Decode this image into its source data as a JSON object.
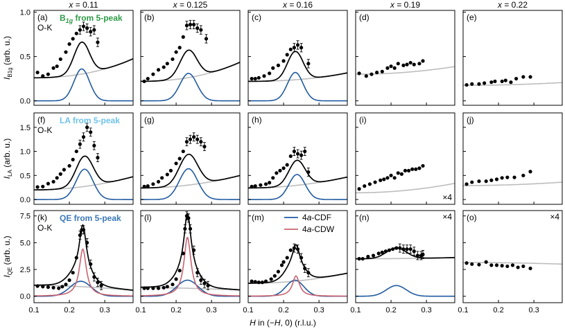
{
  "chart_data": {
    "type": "multi-panel scatter with fitted curves",
    "x_axis": {
      "label": "H in (−H, 0) (r.l.u.)",
      "range": [
        0.1,
        0.38
      ],
      "ticks": [
        0.1,
        0.2,
        0.3
      ],
      "tick_labels": [
        "0.1",
        "0.2",
        "0.3"
      ]
    },
    "columns": [
      {
        "title": "x = 0.11",
        "doping": "0.11"
      },
      {
        "title": "x = 0.125",
        "doping": "0.125"
      },
      {
        "title": "x = 0.16",
        "doping": "0.16"
      },
      {
        "title": "x = 0.19",
        "doping": "0.19"
      },
      {
        "title": "x = 0.22",
        "doping": "0.22"
      }
    ],
    "rows": [
      {
        "id": "b1g",
        "title": "B1g from 5-peak",
        "title_main": "B",
        "title_sub": "1g",
        "title_rest": " from 5-peak",
        "title_color": "#2e9a47",
        "ylabel_main": "I",
        "ylabel_sub": "B1g",
        "ylabel_unit": " (arb. u.)",
        "ylim": [
          -0.05,
          1.02
        ],
        "yticks": [
          0.0,
          0.5,
          1.0
        ],
        "ytick_labels": [
          "0.0",
          "0.5",
          "1.0"
        ],
        "edge_label": "O-K",
        "panels": [
          {
            "label": "(a)",
            "points": {
              "x": [
                0.11,
                0.125,
                0.14,
                0.155,
                0.165,
                0.175,
                0.19,
                0.2,
                0.21,
                0.22,
                0.23,
                0.24,
                0.25,
                0.26,
                0.27,
                0.28
              ],
              "y": [
                0.32,
                0.28,
                0.3,
                0.37,
                0.39,
                0.47,
                0.55,
                0.64,
                0.7,
                0.76,
                0.8,
                0.84,
                0.82,
                0.78,
                0.8,
                0.66
              ]
            },
            "background": {
              "a": 0.26,
              "b": 1.9,
              "c": 3.0
            },
            "peak": {
              "amp": 0.36,
              "center": 0.235,
              "sigma": 0.022
            }
          },
          {
            "label": "(b)",
            "points": {
              "x": [
                0.11,
                0.12,
                0.135,
                0.15,
                0.165,
                0.175,
                0.19,
                0.2,
                0.21,
                0.22,
                0.23,
                0.24,
                0.25,
                0.26,
                0.27,
                0.285
              ],
              "y": [
                0.22,
                0.25,
                0.3,
                0.35,
                0.38,
                0.42,
                0.47,
                0.55,
                0.6,
                0.72,
                0.85,
                0.86,
                0.86,
                0.82,
                0.8,
                0.7
              ]
            },
            "background": {
              "a": 0.22,
              "b": 1.9,
              "c": 3.0
            },
            "peak": {
              "amp": 0.31,
              "center": 0.235,
              "sigma": 0.024
            }
          },
          {
            "label": "(c)",
            "points": {
              "x": [
                0.11,
                0.12,
                0.13,
                0.145,
                0.16,
                0.17,
                0.185,
                0.2,
                0.21,
                0.22,
                0.23,
                0.24,
                0.25,
                0.27
              ],
              "y": [
                0.25,
                0.25,
                0.26,
                0.28,
                0.31,
                0.37,
                0.4,
                0.45,
                0.52,
                0.58,
                0.6,
                0.63,
                0.6,
                0.42
              ]
            },
            "background": {
              "a": 0.22,
              "b": 0.8,
              "c": 1.5
            },
            "peak": {
              "amp": 0.32,
              "center": 0.233,
              "sigma": 0.022
            }
          },
          {
            "label": "(d)",
            "points": {
              "x": [
                0.11,
                0.13,
                0.145,
                0.16,
                0.175,
                0.19,
                0.2,
                0.21,
                0.22,
                0.235,
                0.245,
                0.255,
                0.265,
                0.28,
                0.29
              ],
              "y": [
                0.31,
                0.28,
                0.3,
                0.32,
                0.33,
                0.37,
                0.39,
                0.37,
                0.42,
                0.4,
                0.41,
                0.43,
                0.41,
                0.42,
                0.45
              ]
            },
            "background": {
              "a": 0.3,
              "b": 1.1,
              "c": 0.0
            }
          },
          {
            "label": "(e)",
            "points": {
              "x": [
                0.11,
                0.125,
                0.145,
                0.16,
                0.18,
                0.19,
                0.21,
                0.22,
                0.235,
                0.25,
                0.27,
                0.29
              ],
              "y": [
                0.18,
                0.19,
                0.19,
                0.2,
                0.21,
                0.22,
                0.22,
                0.23,
                0.21,
                0.25,
                0.27,
                0.27
              ]
            },
            "background": {
              "a": 0.175,
              "b": 0.4,
              "c": 0.0
            }
          }
        ]
      },
      {
        "id": "la",
        "title": "LA from 5-peak",
        "title_main": "LA from 5-peak",
        "title_sub": "",
        "title_rest": "",
        "title_color": "#6ec3e8",
        "ylabel_main": "I",
        "ylabel_sub": "LA",
        "ylabel_unit": " (arb. u.)",
        "ylim": [
          -0.1,
          1.8
        ],
        "yticks": [
          0.0,
          0.5,
          1.0,
          1.5
        ],
        "ytick_labels": [
          "0.0",
          "0.5",
          "1.0",
          "1.5"
        ],
        "edge_label": "O-K",
        "scale_note": "×4",
        "panels": [
          {
            "label": "(f)",
            "points": {
              "x": [
                0.11,
                0.125,
                0.14,
                0.155,
                0.165,
                0.175,
                0.185,
                0.2,
                0.21,
                0.22,
                0.23,
                0.24,
                0.25,
                0.26,
                0.27,
                0.28
              ],
              "y": [
                0.26,
                0.27,
                0.33,
                0.37,
                0.45,
                0.53,
                0.62,
                0.7,
                0.83,
                1.0,
                1.15,
                1.3,
                1.5,
                1.4,
                1.12,
                0.87
              ]
            },
            "background": {
              "a": 0.2,
              "b": 3.5,
              "c": 0.0
            },
            "peak": {
              "amp": 0.63,
              "center": 0.243,
              "sigma": 0.024
            }
          },
          {
            "label": "(g)",
            "points": {
              "x": [
                0.11,
                0.12,
                0.135,
                0.15,
                0.16,
                0.175,
                0.185,
                0.2,
                0.21,
                0.22,
                0.23,
                0.24,
                0.25,
                0.26,
                0.27,
                0.28
              ],
              "y": [
                0.27,
                0.28,
                0.32,
                0.37,
                0.45,
                0.52,
                0.6,
                0.75,
                0.85,
                1.0,
                1.2,
                1.25,
                1.3,
                1.25,
                1.2,
                1.1
              ]
            },
            "background": {
              "a": 0.24,
              "b": 3.3,
              "c": 0.0
            },
            "peak": {
              "amp": 0.64,
              "center": 0.235,
              "sigma": 0.026
            }
          },
          {
            "label": "(h)",
            "points": {
              "x": [
                0.11,
                0.12,
                0.135,
                0.15,
                0.16,
                0.17,
                0.18,
                0.19,
                0.2,
                0.21,
                0.22,
                0.23,
                0.24,
                0.25,
                0.26,
                0.27
              ],
              "y": [
                0.27,
                0.28,
                0.3,
                0.32,
                0.35,
                0.45,
                0.55,
                0.6,
                0.65,
                0.72,
                0.9,
                1.0,
                0.95,
                0.92,
                1.0,
                0.57
              ]
            },
            "background": {
              "a": 0.24,
              "b": 2.9,
              "c": 0.0
            },
            "peak": {
              "amp": 0.52,
              "center": 0.238,
              "sigma": 0.023
            }
          },
          {
            "label": "(i)",
            "points": {
              "x": [
                0.11,
                0.125,
                0.14,
                0.155,
                0.17,
                0.18,
                0.19,
                0.2,
                0.21,
                0.22,
                0.23,
                0.24,
                0.25,
                0.26,
                0.27,
                0.28,
                0.29
              ],
              "y": [
                0.22,
                0.28,
                0.32,
                0.36,
                0.4,
                0.42,
                0.45,
                0.5,
                0.45,
                0.55,
                0.53,
                0.6,
                0.6,
                0.63,
                0.63,
                0.65,
                0.7
              ]
            },
            "background": {
              "a": 0.14,
              "b": 2.5,
              "c": 0.0
            }
          },
          {
            "label": "(j)",
            "points": {
              "x": [
                0.11,
                0.125,
                0.145,
                0.165,
                0.18,
                0.195,
                0.21,
                0.225,
                0.245,
                0.27,
                0.29
              ],
              "y": [
                0.32,
                0.36,
                0.38,
                0.38,
                0.4,
                0.42,
                0.45,
                0.46,
                0.46,
                0.5,
                0.58
              ]
            },
            "background": {
              "a": 0.29,
              "b": 0.9,
              "c": 0.0
            }
          }
        ]
      },
      {
        "id": "qe",
        "title": "QE from 5-peak",
        "title_main": "QE from 5-peak",
        "title_sub": "",
        "title_rest": "",
        "title_color": "#3a79b8",
        "ylabel_main": "I",
        "ylabel_sub": "QE",
        "ylabel_unit": " (arb. u.)",
        "ylim": [
          -0.6,
          8.0
        ],
        "yticks": [
          0.0,
          2.5,
          5.0,
          7.5
        ],
        "ytick_labels": [
          "0.0",
          "2.5",
          "5.0",
          "7.5"
        ],
        "edge_label": "O-K",
        "scale_note": "×4",
        "legend": [
          {
            "label": "4a-CDF",
            "color": "#1f5aa0"
          },
          {
            "label": "4a-CDW",
            "color": "#c9626f"
          }
        ],
        "panels": [
          {
            "label": "(k)",
            "points": {
              "x": [
                0.11,
                0.125,
                0.14,
                0.155,
                0.17,
                0.18,
                0.19,
                0.2,
                0.21,
                0.22,
                0.23,
                0.235,
                0.24,
                0.25,
                0.26,
                0.27,
                0.28,
                0.29
              ],
              "y": [
                0.95,
                0.9,
                0.85,
                0.8,
                0.75,
                0.9,
                1.1,
                1.5,
                2.2,
                3.6,
                5.7,
                6.2,
                6.2,
                5.0,
                3.0,
                1.8,
                1.3,
                1.0
              ]
            },
            "background": {
              "a": 1.0,
              "b": -6.0,
              "c": 0.0
            },
            "peak": {
              "amp": 1.4,
              "center": 0.232,
              "sigma": 0.03
            },
            "peak2": {
              "amp": 4.4,
              "center": 0.238,
              "gamma": 0.012
            }
          },
          {
            "label": "(l)",
            "points": {
              "x": [
                0.11,
                0.12,
                0.135,
                0.15,
                0.165,
                0.175,
                0.19,
                0.2,
                0.21,
                0.22,
                0.225,
                0.23,
                0.235,
                0.24,
                0.25,
                0.26,
                0.27,
                0.28,
                0.29
              ],
              "y": [
                0.75,
                0.75,
                0.75,
                0.75,
                0.8,
                0.9,
                1.1,
                1.6,
                2.4,
                4.0,
                6.3,
                7.5,
                7.3,
                6.3,
                4.3,
                2.2,
                1.5,
                1.2,
                1.0
              ]
            },
            "background": {
              "a": 0.8,
              "b": -3.0,
              "c": 0.0
            },
            "peak": {
              "amp": 1.5,
              "center": 0.232,
              "sigma": 0.03
            },
            "peak2": {
              "amp": 5.5,
              "center": 0.232,
              "gamma": 0.012
            }
          },
          {
            "label": "(m)",
            "points": {
              "x": [
                0.11,
                0.12,
                0.13,
                0.14,
                0.15,
                0.165,
                0.175,
                0.185,
                0.195,
                0.2,
                0.21,
                0.22,
                0.23,
                0.24,
                0.25,
                0.26,
                0.27
              ],
              "y": [
                1.4,
                1.35,
                1.3,
                1.3,
                1.4,
                1.6,
                1.9,
                2.3,
                2.9,
                3.2,
                3.6,
                4.3,
                4.5,
                4.4,
                3.6,
                2.6,
                2.2
              ]
            },
            "background": {
              "a": 1.2,
              "b": 12.0,
              "c": 0.0
            },
            "peak": {
              "amp": 1.5,
              "center": 0.232,
              "sigma": 0.025
            },
            "peak2": {
              "amp": 1.9,
              "center": 0.235,
              "gamma": 0.012
            }
          },
          {
            "label": "(n)",
            "points": {
              "x": [
                0.11,
                0.12,
                0.135,
                0.15,
                0.165,
                0.175,
                0.185,
                0.195,
                0.205,
                0.215,
                0.225,
                0.235,
                0.245,
                0.255,
                0.265,
                0.275,
                0.285,
                0.29
              ],
              "y": [
                3.5,
                3.5,
                3.7,
                3.8,
                4.0,
                4.1,
                4.2,
                4.3,
                4.4,
                4.5,
                4.5,
                4.4,
                4.4,
                4.4,
                4.2,
                3.8,
                3.8,
                3.9
              ]
            },
            "background": {
              "a": 3.5,
              "b": 1.4,
              "c": 0.0
            },
            "peak": {
              "amp": 1.0,
              "center": 0.215,
              "sigma": 0.028
            }
          },
          {
            "label": "(o)",
            "points": {
              "x": [
                0.11,
                0.125,
                0.145,
                0.165,
                0.18,
                0.195,
                0.21,
                0.225,
                0.24,
                0.255,
                0.27,
                0.29
              ],
              "y": [
                3.1,
                3.0,
                2.95,
                3.2,
                2.9,
                2.9,
                2.85,
                2.8,
                2.9,
                2.7,
                2.8,
                2.6
              ]
            },
            "background": {
              "a": 3.15,
              "b": -1.9,
              "c": 0.0
            }
          }
        ]
      }
    ]
  }
}
